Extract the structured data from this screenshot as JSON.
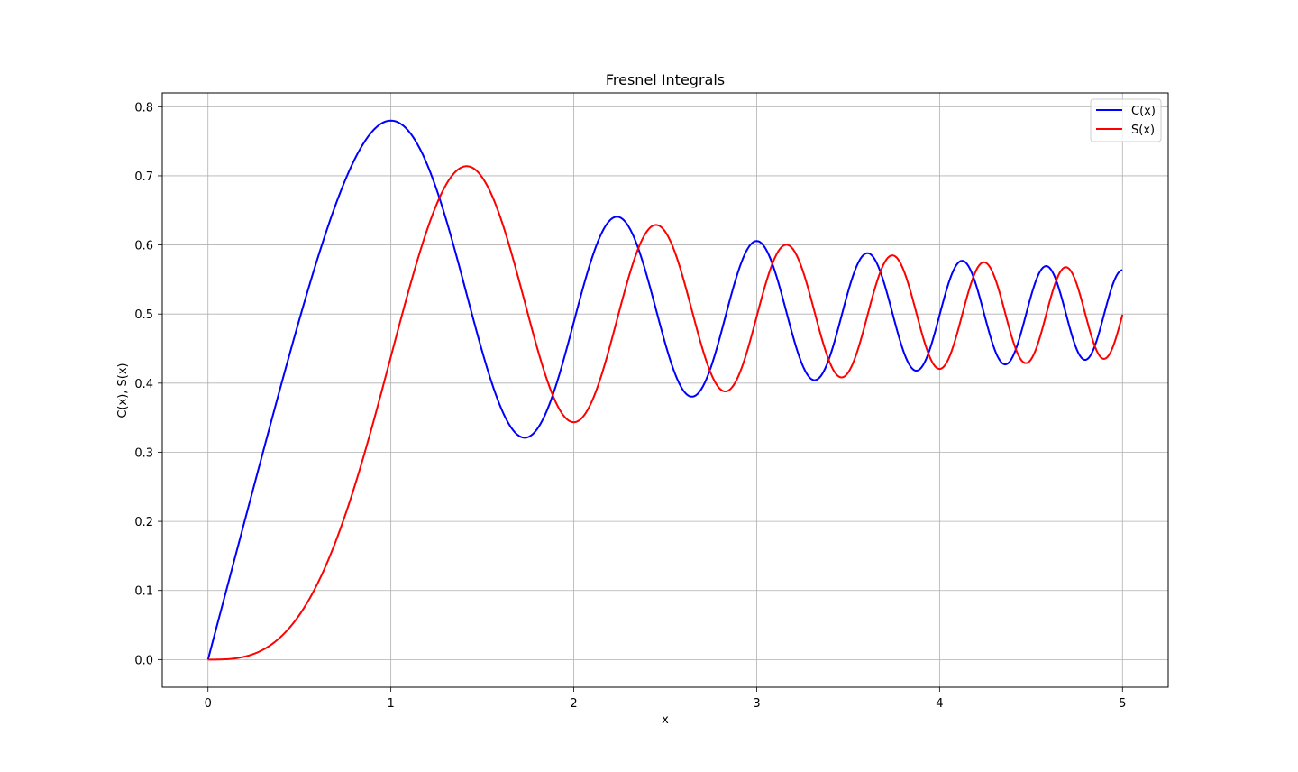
{
  "chart_data": {
    "type": "line",
    "title": "Fresnel Integrals",
    "xlabel": "x",
    "ylabel": "C(x), S(x)",
    "xlim": [
      -0.25,
      5.25
    ],
    "ylim": [
      -0.04,
      0.82
    ],
    "x_ticks": [
      0,
      1,
      2,
      3,
      4,
      5
    ],
    "x_tick_labels": [
      "0",
      "1",
      "2",
      "3",
      "4",
      "5"
    ],
    "y_ticks": [
      0.0,
      0.1,
      0.2,
      0.3,
      0.4,
      0.5,
      0.6,
      0.7,
      0.8
    ],
    "y_tick_labels": [
      "0.0",
      "0.1",
      "0.2",
      "0.3",
      "0.4",
      "0.5",
      "0.6",
      "0.7",
      "0.8"
    ],
    "grid": true,
    "legend_position": "top-right",
    "series": [
      {
        "name": "C(x)",
        "color": "#0000ff",
        "function": "fresnel_c",
        "x_range": [
          0,
          5
        ]
      },
      {
        "name": "S(x)",
        "color": "#ff0000",
        "function": "fresnel_s",
        "x_range": [
          0,
          5
        ]
      }
    ]
  }
}
